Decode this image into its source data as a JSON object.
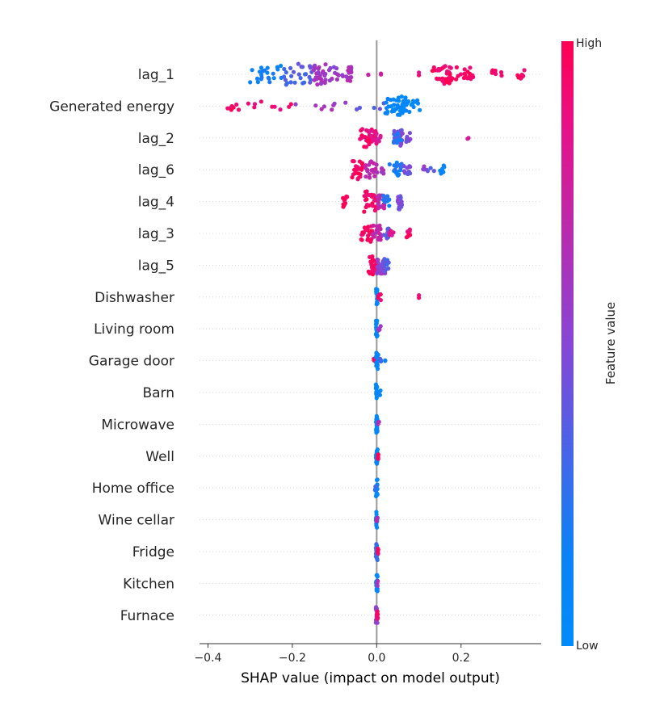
{
  "chart_data": {
    "type": "scatter",
    "subtype": "shap-beeswarm",
    "xlabel": "SHAP value (impact on model output)",
    "xlim": [
      -0.42,
      0.39
    ],
    "xticks": [
      -0.4,
      -0.2,
      0.0,
      0.2
    ],
    "xtick_labels": [
      "−0.4",
      "−0.2",
      "0.0",
      "0.2"
    ],
    "colorbar": {
      "title": "Feature value",
      "high_label": "High",
      "low_label": "Low",
      "low_color": "#008bfb",
      "high_color": "#ff0051"
    },
    "features": [
      {
        "name": "lag_1",
        "clusters": [
          [
            -0.3,
            -0.22,
            14,
            0.15
          ],
          [
            -0.22,
            -0.15,
            16,
            0.35
          ],
          [
            -0.15,
            -0.12,
            18,
            0.6
          ],
          [
            -0.12,
            -0.06,
            10,
            0.55
          ],
          [
            -0.07,
            -0.06,
            10,
            0.65
          ],
          [
            -0.02,
            -0.02,
            1,
            0.7
          ],
          [
            0.01,
            0.01,
            1,
            0.75
          ],
          [
            0.1,
            0.1,
            1,
            0.9
          ],
          [
            0.13,
            0.16,
            10,
            0.95
          ],
          [
            0.16,
            0.18,
            14,
            0.95
          ],
          [
            0.18,
            0.23,
            10,
            0.95
          ],
          [
            0.27,
            0.3,
            5,
            0.95
          ],
          [
            0.33,
            0.35,
            5,
            0.95
          ]
        ]
      },
      {
        "name": "Generated energy",
        "clusters": [
          [
            -0.38,
            -0.33,
            4,
            0.97
          ],
          [
            -0.33,
            -0.2,
            6,
            0.92
          ],
          [
            -0.2,
            -0.05,
            5,
            0.6
          ],
          [
            -0.05,
            0.02,
            3,
            0.4
          ],
          [
            0.02,
            0.05,
            12,
            0.1
          ],
          [
            0.05,
            0.07,
            14,
            0.05
          ],
          [
            0.07,
            0.11,
            8,
            0.05
          ]
        ]
      },
      {
        "name": "lag_2",
        "clusters": [
          [
            -0.04,
            -0.01,
            14,
            0.95
          ],
          [
            -0.02,
            0.0,
            10,
            0.85
          ],
          [
            0.0,
            0.01,
            4,
            0.8
          ],
          [
            0.04,
            0.06,
            12,
            0.45
          ],
          [
            0.05,
            0.08,
            8,
            0.5
          ],
          [
            0.04,
            0.06,
            6,
            0.2
          ],
          [
            0.21,
            0.22,
            1,
            0.75
          ]
        ]
      },
      {
        "name": "lag_6",
        "clusters": [
          [
            -0.06,
            -0.03,
            14,
            0.95
          ],
          [
            -0.03,
            0.0,
            12,
            0.7
          ],
          [
            0.0,
            0.02,
            4,
            0.6
          ],
          [
            0.03,
            0.06,
            10,
            0.2
          ],
          [
            0.06,
            0.08,
            6,
            0.45
          ],
          [
            0.11,
            0.12,
            3,
            0.5
          ],
          [
            0.12,
            0.14,
            2,
            0.35
          ],
          [
            0.15,
            0.16,
            5,
            0.1
          ]
        ]
      },
      {
        "name": "lag_4",
        "clusters": [
          [
            -0.08,
            -0.07,
            8,
            0.95
          ],
          [
            -0.03,
            0.0,
            16,
            0.95
          ],
          [
            0.0,
            0.02,
            10,
            0.7
          ],
          [
            0.01,
            0.03,
            8,
            0.2
          ],
          [
            0.05,
            0.06,
            12,
            0.45
          ]
        ]
      },
      {
        "name": "lag_3",
        "clusters": [
          [
            -0.04,
            -0.01,
            14,
            0.95
          ],
          [
            -0.01,
            0.01,
            12,
            0.7
          ],
          [
            0.01,
            0.03,
            6,
            0.4
          ],
          [
            0.03,
            0.04,
            4,
            0.85
          ],
          [
            0.07,
            0.08,
            5,
            0.95
          ]
        ]
      },
      {
        "name": "lag_5",
        "clusters": [
          [
            -0.02,
            0.0,
            14,
            0.95
          ],
          [
            0.0,
            0.02,
            14,
            0.55
          ],
          [
            0.01,
            0.03,
            8,
            0.35
          ]
        ]
      },
      {
        "name": "Dishwasher",
        "clusters": [
          [
            -0.002,
            0.002,
            12,
            0.05
          ],
          [
            0.003,
            0.01,
            3,
            0.95
          ],
          [
            0.1,
            0.1,
            1,
            0.95
          ]
        ]
      },
      {
        "name": "Living room",
        "clusters": [
          [
            -0.002,
            0.002,
            12,
            0.05
          ],
          [
            0.003,
            0.012,
            3,
            0.6
          ]
        ]
      },
      {
        "name": "Garage door",
        "clusters": [
          [
            -0.01,
            -0.006,
            2,
            0.9
          ],
          [
            -0.002,
            0.004,
            12,
            0.1
          ],
          [
            0.007,
            0.012,
            2,
            0.3
          ],
          [
            0.02,
            0.02,
            1,
            0.1
          ]
        ]
      },
      {
        "name": "Barn",
        "clusters": [
          [
            -0.002,
            0.002,
            12,
            0.05
          ],
          [
            0.003,
            0.009,
            3,
            0.1
          ]
        ]
      },
      {
        "name": "Microwave",
        "clusters": [
          [
            -0.002,
            0.002,
            12,
            0.05
          ],
          [
            0.003,
            0.007,
            2,
            0.6
          ]
        ]
      },
      {
        "name": "Well",
        "clusters": [
          [
            -0.002,
            0.002,
            12,
            0.1
          ],
          [
            0.001,
            0.004,
            3,
            0.95
          ]
        ]
      },
      {
        "name": "Home office",
        "clusters": [
          [
            -0.002,
            0.002,
            12,
            0.05
          ],
          [
            -0.004,
            -0.002,
            2,
            0.3
          ]
        ]
      },
      {
        "name": "Wine cellar",
        "clusters": [
          [
            -0.002,
            0.002,
            12,
            0.08
          ],
          [
            0.0,
            0.002,
            2,
            0.7
          ]
        ]
      },
      {
        "name": "Fridge",
        "clusters": [
          [
            -0.002,
            0.002,
            12,
            0.3
          ],
          [
            0.002,
            0.004,
            3,
            0.95
          ]
        ]
      },
      {
        "name": "Kitchen",
        "clusters": [
          [
            -0.002,
            0.002,
            12,
            0.05
          ],
          [
            0.001,
            0.003,
            2,
            0.6
          ]
        ]
      },
      {
        "name": "Furnace",
        "clusters": [
          [
            -0.002,
            0.002,
            12,
            0.55
          ],
          [
            0.0,
            0.003,
            4,
            0.95
          ]
        ]
      }
    ]
  }
}
